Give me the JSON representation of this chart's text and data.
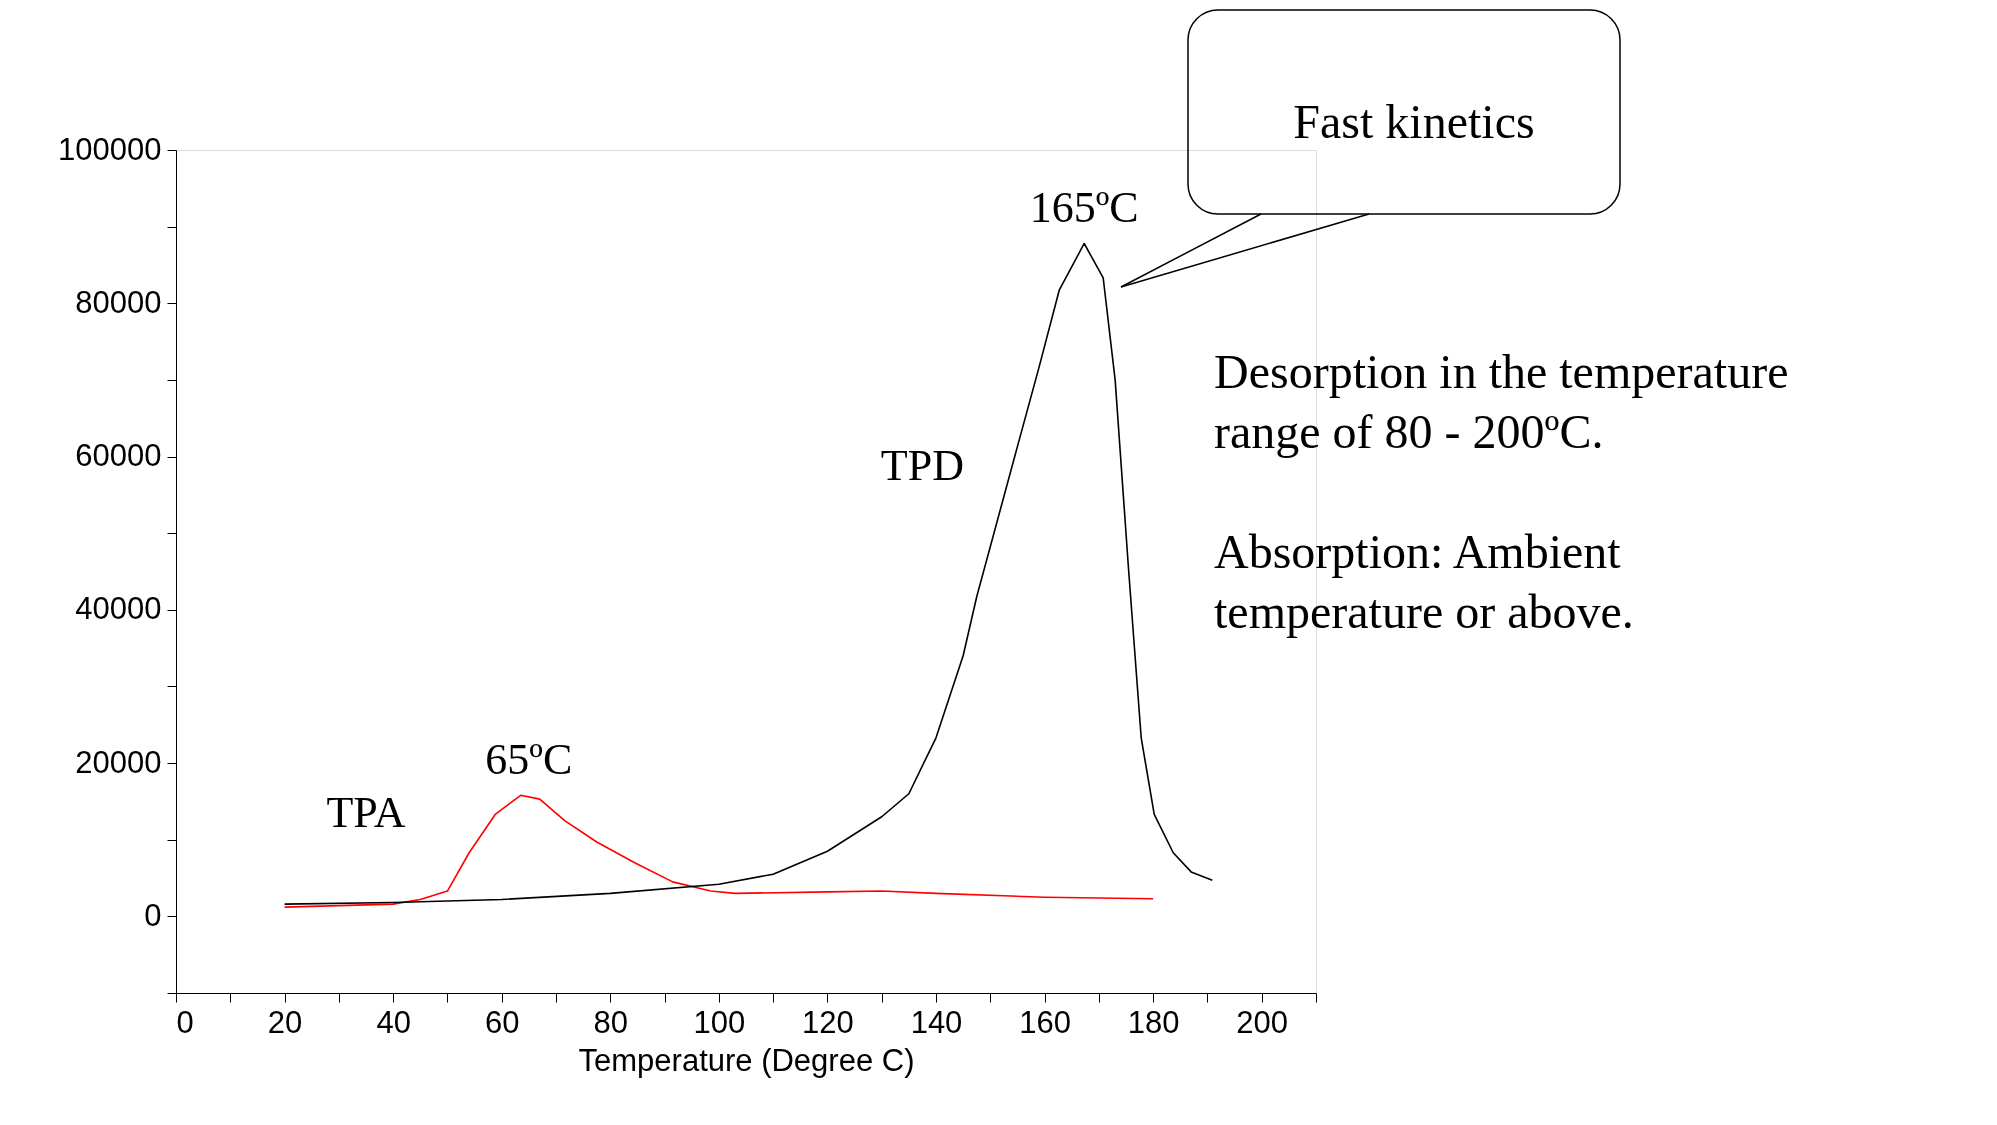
{
  "chart_data": {
    "type": "line",
    "xlabel": "Temperature (Degree C)",
    "xlim": [
      0,
      210
    ],
    "xticks": [
      0,
      {
        "value": 10,
        "label": null
      },
      20,
      {
        "value": 30,
        "label": null
      },
      40,
      {
        "value": 50,
        "label": null
      },
      60,
      {
        "value": 70,
        "label": null
      },
      80,
      {
        "value": 90,
        "label": null
      },
      100,
      {
        "value": 110,
        "label": null
      },
      120,
      {
        "value": 130,
        "label": null
      },
      140,
      {
        "value": 150,
        "label": null
      },
      160,
      {
        "value": 170,
        "label": null
      },
      180,
      {
        "value": 190,
        "label": null
      },
      200,
      {
        "value": 210,
        "label": null
      }
    ],
    "ylim": [
      -10000,
      100000
    ],
    "yticks": [
      {
        "value": -10000,
        "label": null
      },
      0,
      {
        "value": 10000,
        "label": null
      },
      20000,
      {
        "value": 30000,
        "label": null
      },
      40000,
      {
        "value": 50000,
        "label": null
      },
      60000,
      {
        "value": 70000,
        "label": null
      },
      80000,
      {
        "value": 90000,
        "label": null
      },
      100000
    ],
    "grid": false,
    "legend": false,
    "marker": "none",
    "line_style": "solid",
    "series": [
      {
        "name": "TPA",
        "color": "#ff0000",
        "x": [
          20,
          40,
          45,
          50,
          54,
          58.8,
          63.5,
          67,
          71.6,
          77.5,
          84.5,
          91.5,
          98.5,
          103,
          120,
          130,
          140,
          160,
          180
        ],
        "values": [
          1200,
          1600,
          2200,
          3300,
          8300,
          13300,
          15800,
          15300,
          12500,
          9700,
          7000,
          4500,
          3300,
          3000,
          3200,
          3300,
          3000,
          2500,
          2300
        ]
      },
      {
        "name": "TPD",
        "color": "#000000",
        "x": [
          20,
          40,
          60,
          80,
          100,
          110,
          120,
          130,
          135,
          140,
          145,
          147.5,
          154.5,
          159,
          162.7,
          167.3,
          170.8,
          173,
          175.5,
          177.8,
          180.2,
          183.7,
          187,
          190.9
        ],
        "values": [
          1600,
          1800,
          2200,
          3000,
          4200,
          5500,
          8500,
          13000,
          16000,
          23300,
          34000,
          41700,
          60000,
          71700,
          81700,
          87800,
          83300,
          70000,
          45000,
          23300,
          13300,
          8300,
          5800,
          4700
        ]
      }
    ],
    "annotations": [
      "Fast kinetics",
      {
        "text": "65ºC",
        "x": 65,
        "y": 15800
      },
      {
        "text": "165ºC",
        "x": 167.3,
        "y": 87800
      },
      "Desorption in the temperature range of 80 - 200ºC.",
      "Absorption: Ambient temperature or above."
    ]
  }
}
